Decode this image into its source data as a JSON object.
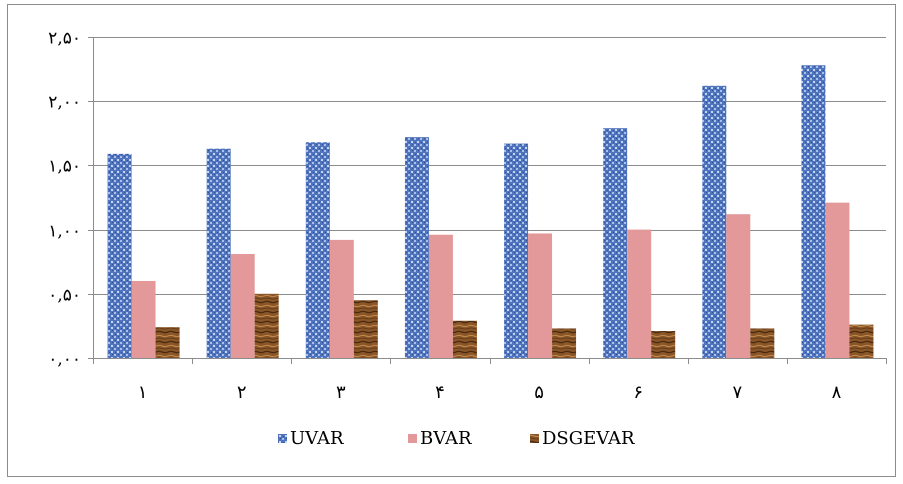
{
  "chart_data": {
    "type": "bar",
    "categories": [
      "١",
      "٢",
      "٣",
      "۴",
      "۵",
      "۶",
      "٧",
      "٨"
    ],
    "series": [
      {
        "name": "UVAR",
        "values": [
          1.59,
          1.63,
          1.68,
          1.72,
          1.67,
          1.79,
          2.12,
          2.28
        ]
      },
      {
        "name": "BVAR",
        "values": [
          0.6,
          0.81,
          0.92,
          0.96,
          0.97,
          1.0,
          1.12,
          1.21
        ]
      },
      {
        "name": "DSGEVAR",
        "values": [
          0.24,
          0.5,
          0.45,
          0.29,
          0.23,
          0.21,
          0.23,
          0.26
        ]
      }
    ],
    "ylim": [
      0,
      2.5
    ],
    "y_ticks": [
      "٠,٠٠",
      "٠,۵٠",
      "١,٠٠",
      "١,۵٠",
      "٢,٠٠",
      "٢,۵٠"
    ],
    "grid": true,
    "legend_position": "bottom",
    "colors": {
      "UVAR": "#5b7fc4",
      "BVAR": "#e3999a",
      "DSGEVAR": "#7a4a22"
    }
  }
}
